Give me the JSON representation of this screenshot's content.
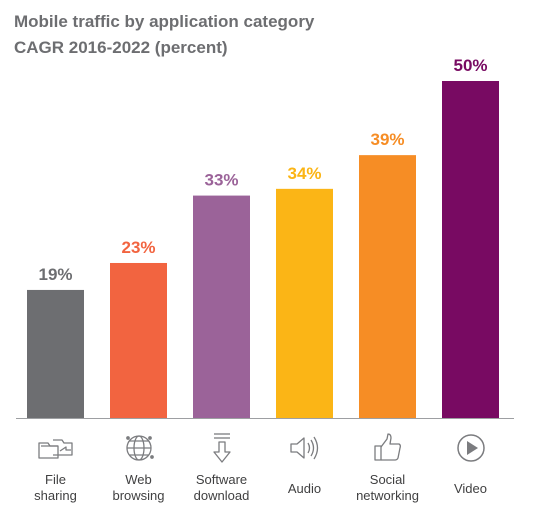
{
  "title": "Mobile traffic by application category",
  "subtitle": "CAGR 2016-2022 (percent)",
  "chart_data": {
    "type": "bar",
    "title": "Mobile traffic by application category",
    "subtitle": "CAGR 2016-2022 (percent)",
    "ylim": [
      0,
      50
    ],
    "grid": false,
    "categories": [
      {
        "name": "File sharing",
        "lines": [
          "File",
          "sharing"
        ],
        "value": 19,
        "label": "19%",
        "color": "#6d6e71",
        "icon": "file-sharing-icon"
      },
      {
        "name": "Web browsing",
        "lines": [
          "Web",
          "browsing"
        ],
        "value": 23,
        "label": "23%",
        "color": "#f26440",
        "icon": "globe-icon"
      },
      {
        "name": "Software download",
        "lines": [
          "Software",
          "download"
        ],
        "value": 33,
        "label": "33%",
        "color": "#9b6399",
        "icon": "download-icon"
      },
      {
        "name": "Audio",
        "lines": [
          "Audio"
        ],
        "value": 34,
        "label": "34%",
        "color": "#fbb516",
        "icon": "speaker-icon"
      },
      {
        "name": "Social networking",
        "lines": [
          "Social",
          "networking"
        ],
        "value": 39,
        "label": "39%",
        "color": "#f68d25",
        "icon": "thumbs-up-icon"
      },
      {
        "name": "Video",
        "lines": [
          "Video"
        ],
        "value": 50,
        "label": "50%",
        "color": "#780a62",
        "icon": "play-icon"
      }
    ]
  }
}
